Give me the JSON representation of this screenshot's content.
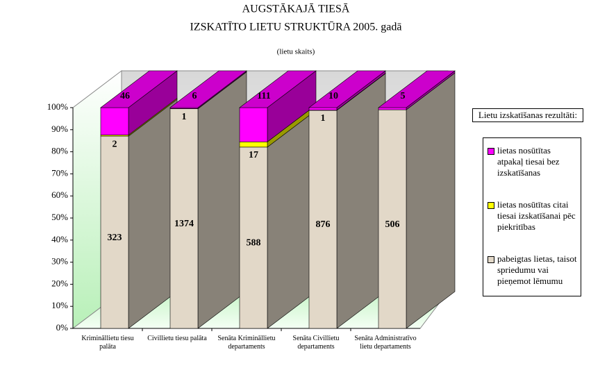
{
  "chart_data": {
    "type": "bar",
    "stacking": "percent",
    "title": "AUGSTĀKAJĀ TIESĀ",
    "subtitle": "IZSKATĪTO LIETU STRUKTŪRA 2005. gadā",
    "note": "(lietu skaits)",
    "legend_title": "Lietu izskatīšanas rezultāti:",
    "legend": "right",
    "categories": [
      "Krimināllietu tiesu palāta",
      "Civillietu tiesu palāta",
      "Senāta Krimināllietu departaments",
      "Senāta Civillietu departaments",
      "Senāta Administratīvo lietu departaments"
    ],
    "series": [
      {
        "name": "lietas nosūtītas atpakaļ tiesai bez izskatīšanas",
        "color": "#ff00ff",
        "values": [
          46,
          6,
          111,
          10,
          5
        ]
      },
      {
        "name": "lietas nosūtītas citai tiesai izskatīšanai pēc piekritības",
        "color": "#ffff00",
        "values": [
          2,
          1,
          17,
          1,
          null
        ]
      },
      {
        "name": "pabeigtas lietas, taisot spriedumu vai pieņemot lēmumu",
        "color": "#e2d8c8",
        "values": [
          323,
          1374,
          588,
          876,
          506
        ]
      }
    ],
    "ylim": [
      0,
      100
    ],
    "yticks": [
      {
        "value": 0,
        "label": "0%"
      },
      {
        "value": 10,
        "label": "10%"
      },
      {
        "value": 20,
        "label": "20%"
      },
      {
        "value": 30,
        "label": "30%"
      },
      {
        "value": 40,
        "label": "40%"
      },
      {
        "value": 50,
        "label": "50%"
      },
      {
        "value": 60,
        "label": "60%"
      },
      {
        "value": 70,
        "label": "70%"
      },
      {
        "value": 80,
        "label": "80%"
      },
      {
        "value": 90,
        "label": "90%"
      },
      {
        "value": 100,
        "label": "100%"
      }
    ]
  }
}
